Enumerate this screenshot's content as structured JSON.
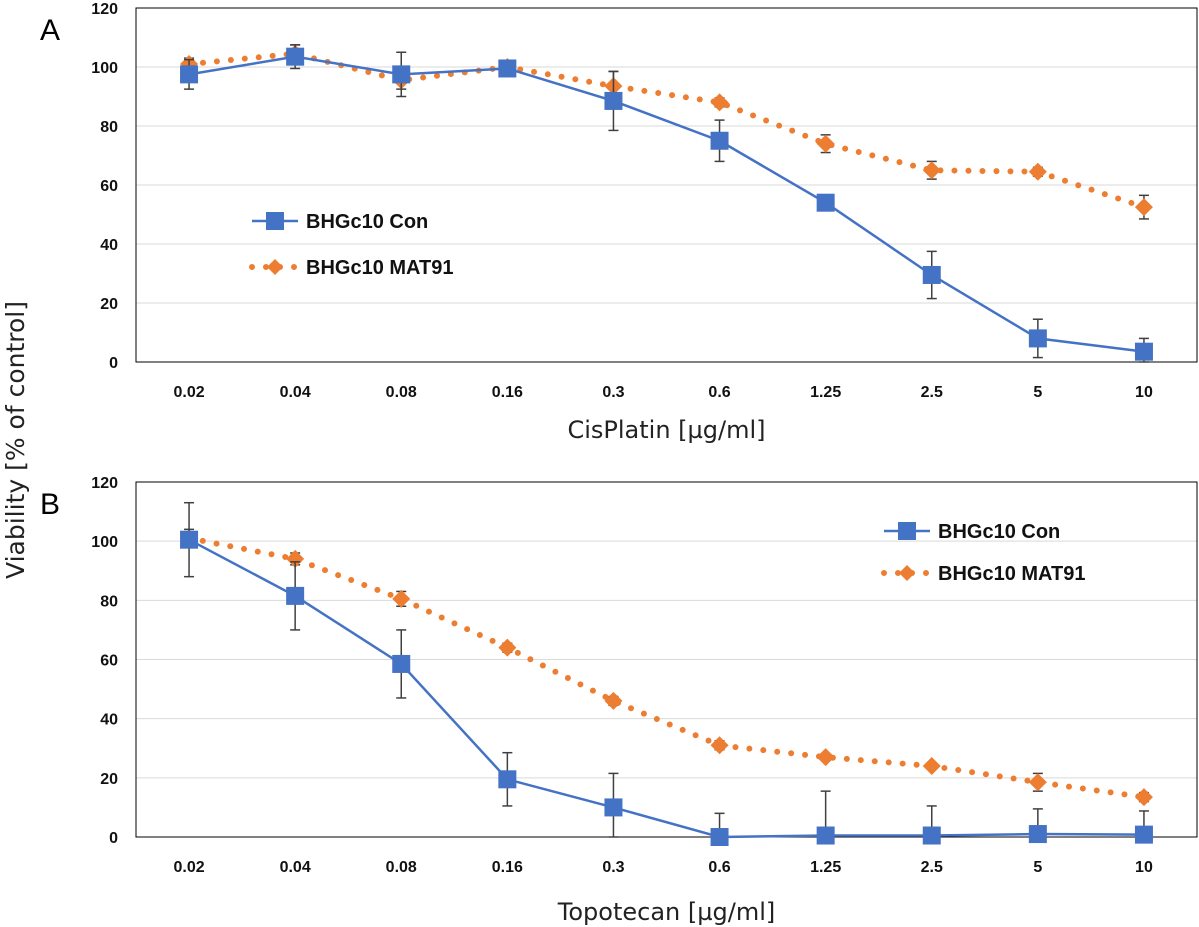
{
  "figure": {
    "y_axis_title": "Viability [% of control]"
  },
  "colors": {
    "con": "#4472C4",
    "mat91": "#ED7D31"
  },
  "chart_data": [
    {
      "type": "line",
      "panel": "A",
      "xlabel": "CisPlatin [µg/ml]",
      "categories": [
        "0.02",
        "0.04",
        "0.08",
        "0.16",
        "0.3",
        "0.6",
        "1.25",
        "2.5",
        "5",
        "10"
      ],
      "ylim": [
        0,
        120
      ],
      "yticks": [
        "0",
        "20",
        "40",
        "60",
        "80",
        "100",
        "120"
      ],
      "grid": true,
      "legend_position": "left",
      "series": [
        {
          "name": "BHGc10 Con",
          "marker": "square",
          "line": "solid",
          "values": [
            97.5,
            103.5,
            97.5,
            99.5,
            88.5,
            75,
            54,
            29.5,
            8,
            3.5
          ],
          "errors": [
            5,
            4,
            7.5,
            2,
            10,
            7,
            1.5,
            8,
            6.5,
            4.5
          ]
        },
        {
          "name": "BHGc10 MAT91",
          "marker": "diamond",
          "line": "dotted",
          "values": [
            101,
            104.5,
            95.5,
            100,
            93.5,
            88,
            74,
            65,
            64.5,
            52.5
          ],
          "errors": [
            2,
            3,
            3,
            1,
            5,
            1.5,
            3,
            3,
            1.5,
            4
          ]
        }
      ]
    },
    {
      "type": "line",
      "panel": "B",
      "xlabel": "Topotecan  [µg/ml]",
      "categories": [
        "0.02",
        "0.04",
        "0.08",
        "0.16",
        "0.3",
        "0.6",
        "1.25",
        "2.5",
        "5",
        "10"
      ],
      "ylim": [
        0,
        120
      ],
      "yticks": [
        "0",
        "20",
        "40",
        "60",
        "80",
        "100",
        "120"
      ],
      "grid": true,
      "legend_position": "top-right",
      "series": [
        {
          "name": "BHGc10 Con",
          "marker": "square",
          "line": "solid",
          "values": [
            100.5,
            81.5,
            58.5,
            19.5,
            10,
            0,
            0.5,
            0.5,
            1,
            0.8
          ],
          "errors": [
            12.5,
            11.5,
            11.5,
            9,
            11.5,
            8,
            15,
            10,
            8.5,
            8
          ]
        },
        {
          "name": "BHGc10 MAT91",
          "marker": "diamond",
          "line": "dotted",
          "values": [
            101,
            94,
            80.5,
            64,
            46,
            31,
            27,
            24,
            18.5,
            13.5
          ],
          "errors": [
            3,
            2,
            2.5,
            1.5,
            1.5,
            1.5,
            1,
            1,
            3,
            1.5
          ]
        }
      ]
    }
  ]
}
